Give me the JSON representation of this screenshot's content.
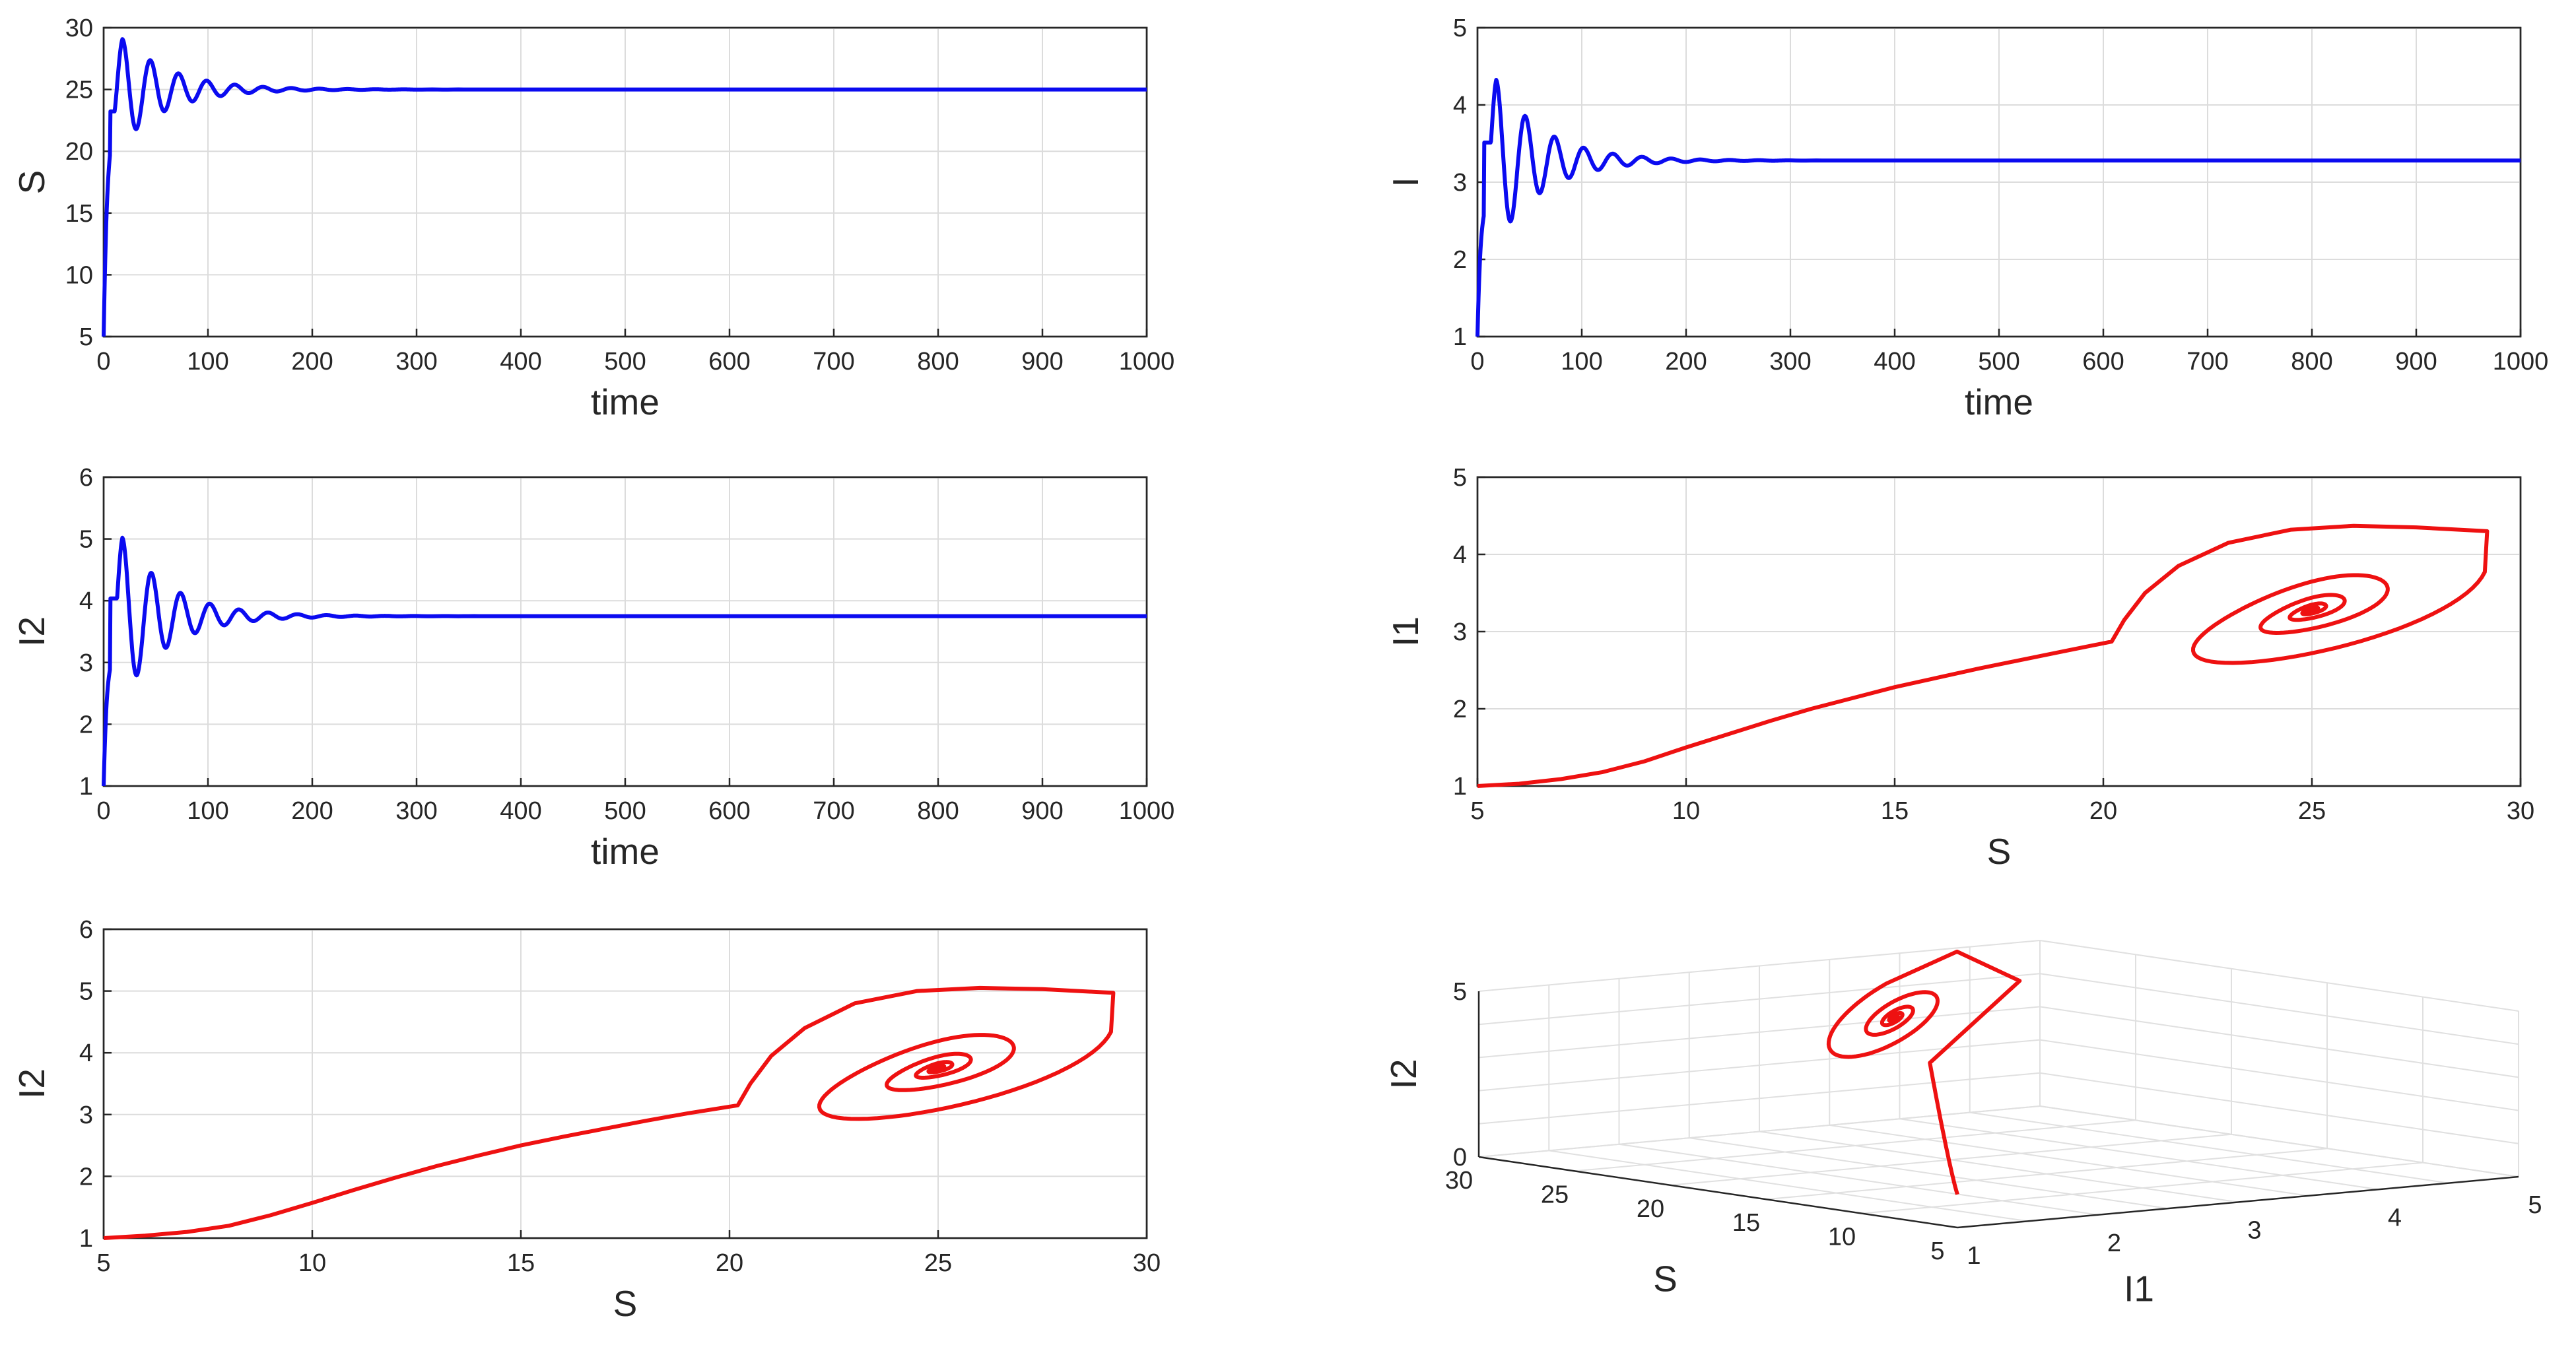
{
  "chart_data": [
    {
      "id": "s-time",
      "type": "line",
      "xlabel": "time",
      "ylabel": "S",
      "xlim": [
        0,
        1000
      ],
      "ylim": [
        5,
        30
      ],
      "xticks": [
        "0",
        "100",
        "200",
        "300",
        "400",
        "500",
        "600",
        "700",
        "800",
        "900",
        "1000"
      ],
      "yticks": [
        "5",
        "10",
        "15",
        "20",
        "25",
        "30"
      ],
      "grid": true,
      "color": "#0b0bf0",
      "series": [
        {
          "name": "S",
          "x0": 5,
          "peak": 29.3,
          "trough": 21.5,
          "equilibrium": 25.0,
          "period": 27,
          "decay": 45
        }
      ]
    },
    {
      "id": "i-time",
      "type": "line",
      "xlabel": "time",
      "ylabel": "I",
      "xlim": [
        0,
        1000
      ],
      "ylim": [
        1,
        5
      ],
      "xticks": [
        "0",
        "100",
        "200",
        "300",
        "400",
        "500",
        "600",
        "700",
        "800",
        "900",
        "1000"
      ],
      "yticks": [
        "1",
        "2",
        "3",
        "4",
        "5"
      ],
      "grid": true,
      "color": "#0b0bf0",
      "series": [
        {
          "name": "I",
          "x0": 1,
          "peak": 4.35,
          "trough": 2.5,
          "equilibrium": 3.28,
          "period": 28,
          "decay": 45
        }
      ]
    },
    {
      "id": "i2-time",
      "type": "line",
      "xlabel": "time",
      "ylabel": "I2",
      "xlim": [
        0,
        1000
      ],
      "ylim": [
        1,
        6
      ],
      "xticks": [
        "0",
        "100",
        "200",
        "300",
        "400",
        "500",
        "600",
        "700",
        "800",
        "900",
        "1000"
      ],
      "yticks": [
        "1",
        "2",
        "3",
        "4",
        "5",
        "6"
      ],
      "grid": true,
      "color": "#0b0bf0",
      "series": [
        {
          "name": "I2",
          "x0": 1,
          "peak": 5.05,
          "trough": 2.8,
          "equilibrium": 3.75,
          "period": 28,
          "decay": 45
        }
      ]
    },
    {
      "id": "i1-s-phase",
      "type": "line",
      "xlabel": "S",
      "ylabel": "I1",
      "xlim": [
        5,
        30
      ],
      "ylim": [
        1,
        5
      ],
      "xticks": [
        "5",
        "10",
        "15",
        "20",
        "25",
        "30"
      ],
      "yticks": [
        "1",
        "2",
        "3",
        "4",
        "5"
      ],
      "grid": true,
      "color": "#ee1111",
      "series": [
        {
          "name": "I1 vs S",
          "points": [
            [
              5,
              1.0
            ],
            [
              6,
              1.03
            ],
            [
              7,
              1.09
            ],
            [
              8,
              1.18
            ],
            [
              9,
              1.32
            ],
            [
              10,
              1.5
            ],
            [
              11,
              1.67
            ],
            [
              12,
              1.84
            ],
            [
              13,
              2.0
            ],
            [
              14,
              2.14
            ],
            [
              15,
              2.28
            ],
            [
              16,
              2.4
            ],
            [
              17,
              2.52
            ],
            [
              18,
              2.63
            ],
            [
              19,
              2.74
            ],
            [
              20.2,
              2.87
            ],
            [
              20.5,
              3.15
            ],
            [
              21,
              3.5
            ],
            [
              21.8,
              3.85
            ],
            [
              23,
              4.15
            ],
            [
              24.5,
              4.32
            ],
            [
              26,
              4.37
            ],
            [
              27.5,
              4.35
            ],
            [
              29.2,
              4.3
            ]
          ],
          "equilibrium": [
            25.0,
            3.28
          ]
        }
      ]
    },
    {
      "id": "i2-s-phase",
      "type": "line",
      "xlabel": "S",
      "ylabel": "I2",
      "xlim": [
        5,
        30
      ],
      "ylim": [
        1,
        6
      ],
      "xticks": [
        "5",
        "10",
        "15",
        "20",
        "25",
        "30"
      ],
      "yticks": [
        "1",
        "2",
        "3",
        "4",
        "5",
        "6"
      ],
      "grid": true,
      "color": "#ee1111",
      "series": [
        {
          "name": "I2 vs S",
          "points": [
            [
              5,
              1.0
            ],
            [
              6,
              1.04
            ],
            [
              7,
              1.1
            ],
            [
              8,
              1.2
            ],
            [
              9,
              1.37
            ],
            [
              10,
              1.57
            ],
            [
              11,
              1.78
            ],
            [
              12,
              1.98
            ],
            [
              13,
              2.17
            ],
            [
              14,
              2.34
            ],
            [
              15,
              2.5
            ],
            [
              16,
              2.64
            ],
            [
              17,
              2.77
            ],
            [
              18,
              2.9
            ],
            [
              19,
              3.02
            ],
            [
              20.2,
              3.15
            ],
            [
              20.5,
              3.5
            ],
            [
              21,
              3.95
            ],
            [
              21.8,
              4.4
            ],
            [
              23,
              4.8
            ],
            [
              24.5,
              5.0
            ],
            [
              26,
              5.05
            ],
            [
              27.5,
              5.03
            ],
            [
              29.2,
              4.97
            ]
          ],
          "equilibrium": [
            25.0,
            3.75
          ]
        }
      ]
    },
    {
      "id": "s-i1-i2-3d",
      "type": "line3d",
      "xlabel": "I1",
      "ylabel": "S",
      "zlabel": "I2",
      "xlim": [
        1,
        5
      ],
      "ylim": [
        5,
        30
      ],
      "zlim": [
        0,
        5
      ],
      "xticks": [
        "1",
        "2",
        "3",
        "4",
        "5"
      ],
      "yticks": [
        "5",
        "10",
        "15",
        "20",
        "25",
        "30"
      ],
      "zticks": [
        "0",
        "5"
      ],
      "grid": true,
      "color": "#ee1111",
      "series": [
        {
          "name": "trajectory",
          "equilibrium": [
            3.28,
            25.0,
            3.75
          ],
          "start": [
            1,
            5,
            1
          ]
        }
      ]
    }
  ]
}
